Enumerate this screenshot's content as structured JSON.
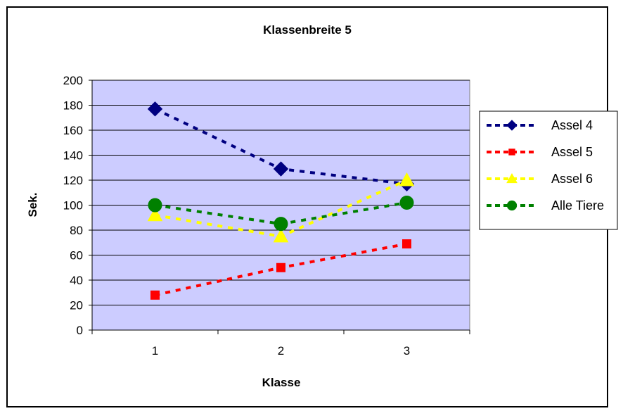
{
  "chart_data": {
    "type": "line",
    "title": "Klassenbreite 5",
    "xlabel": "Klasse",
    "ylabel": "Sek.",
    "categories": [
      "1",
      "2",
      "3"
    ],
    "ylim": [
      0,
      200
    ],
    "yticks": [
      "0",
      "20",
      "40",
      "60",
      "80",
      "100",
      "120",
      "140",
      "160",
      "180",
      "200"
    ],
    "grid": true,
    "legend_position": "right",
    "series": [
      {
        "name": "Assel 4",
        "values": [
          177,
          129,
          117
        ],
        "color": "#000080",
        "marker": "diamond"
      },
      {
        "name": "Assel 5",
        "values": [
          28,
          50,
          69
        ],
        "color": "#ff0000",
        "marker": "square"
      },
      {
        "name": "Assel 6",
        "values": [
          92,
          75,
          120
        ],
        "color": "#ffff00",
        "marker": "triangle"
      },
      {
        "name": "Alle Tiere",
        "values": [
          100,
          85,
          102
        ],
        "color": "#008000",
        "marker": "circle"
      }
    ],
    "plot_background": "#ccccff"
  }
}
